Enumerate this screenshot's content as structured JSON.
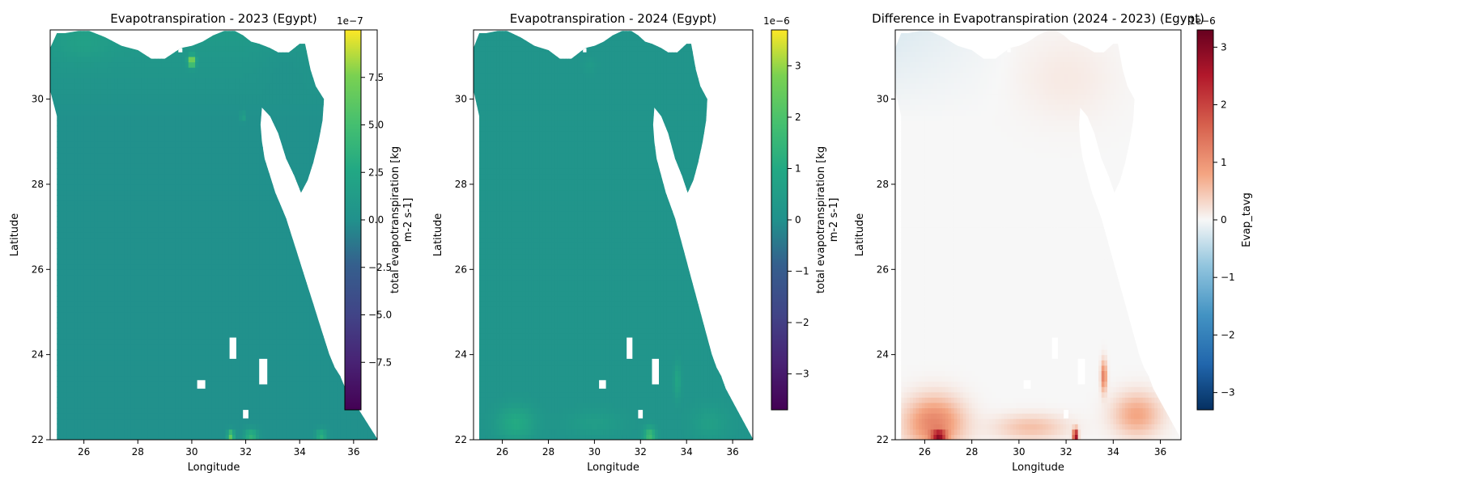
{
  "chart_data": [
    {
      "type": "heatmap",
      "title": "Evapotranspiration - 2023 (Egypt)",
      "xlabel": "Longitude",
      "ylabel": "Latitude",
      "xlim": [
        24.75,
        36.875
      ],
      "ylim": [
        22.0,
        31.625
      ],
      "x_ticks": [
        "26",
        "28",
        "30",
        "32",
        "34",
        "36"
      ],
      "y_ticks": [
        "22",
        "24",
        "26",
        "28",
        "30"
      ],
      "colormap": "viridis",
      "colorbar": {
        "label": "total evapotranspiration [kg m-2 s-1]",
        "label_lines": [
          "total evapotranspiration [kg",
          "m-2 s-1]"
        ],
        "scale_text": "1e−7",
        "range": [
          -1.0,
          1.0
        ],
        "ticks": [
          "7.5",
          "5.0",
          "2.5",
          "0.0",
          "−2.5",
          "−5.0",
          "−7.5"
        ],
        "tick_values": [
          7.5,
          5.0,
          2.5,
          0.0,
          -2.5,
          -5.0,
          -7.5
        ],
        "tick_scale": 1e-07
      },
      "field_description": "mostly near zero (teal); slightly positive toward the north coast; isolated hotspots up to ~1e-7 near (30.0, 30.9), (31.4, 22.1), (32.2, 22.1), (34.8, 22.1)"
    },
    {
      "type": "heatmap",
      "title": "Evapotranspiration - 2024 (Egypt)",
      "xlabel": "Longitude",
      "ylabel": "Latitude",
      "xlim": [
        24.75,
        36.875
      ],
      "ylim": [
        22.0,
        31.625
      ],
      "x_ticks": [
        "26",
        "28",
        "30",
        "32",
        "34",
        "36"
      ],
      "y_ticks": [
        "22",
        "24",
        "26",
        "28",
        "30"
      ],
      "colormap": "viridis",
      "colorbar": {
        "label": "total evapotranspiration [kg m-2 s-1]",
        "label_lines": [
          "total evapotranspiration [kg",
          "m-2 s-1]"
        ],
        "scale_text": "1e−6",
        "range": [
          -3.7,
          3.7
        ],
        "ticks": [
          "3",
          "2",
          "1",
          "0",
          "−1",
          "−2",
          "−3"
        ],
        "tick_values": [
          3,
          2,
          1,
          0,
          -1,
          -2,
          -3
        ],
        "tick_scale": 1e-06
      },
      "field_description": "near zero over most of Egypt; higher values in the south around 22-23.5 N, peaking ~3e-6 near (32.4, 22.1) and (26.6, 22.4)"
    },
    {
      "type": "heatmap",
      "title": "Difference in Evapotranspiration (2024 - 2023) (Egypt)",
      "xlabel": "Longitude",
      "ylabel": "Latitude",
      "xlim": [
        24.75,
        36.875
      ],
      "ylim": [
        22.0,
        31.625
      ],
      "x_ticks": [
        "26",
        "28",
        "30",
        "32",
        "34",
        "36"
      ],
      "y_ticks": [
        "22",
        "24",
        "26",
        "28",
        "30"
      ],
      "colormap": "RdBu_r",
      "colorbar": {
        "label": "Evap_tavg",
        "label_lines": [
          "Evap_tavg"
        ],
        "scale_text": "1e−6",
        "range": [
          -3.3,
          3.3
        ],
        "ticks": [
          "3",
          "2",
          "1",
          "0",
          "−1",
          "−2",
          "−3"
        ],
        "tick_values": [
          3,
          2,
          1,
          0,
          -1,
          -2,
          -3
        ],
        "tick_scale": 1e-06
      },
      "field_description": "near zero over most of the country (slightly negative in the north-west); positive differences in the south, strongest ~3e-6 near (32.4, 22.1) and (26.6, 22.1), ~1.5e-6 near (33.6, 23.5)"
    }
  ]
}
